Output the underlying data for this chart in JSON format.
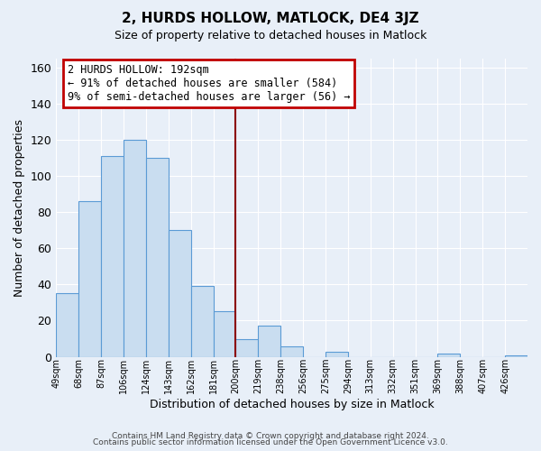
{
  "title": "2, HURDS HOLLOW, MATLOCK, DE4 3JZ",
  "subtitle": "Size of property relative to detached houses in Matlock",
  "xlabel": "Distribution of detached houses by size in Matlock",
  "ylabel": "Number of detached properties",
  "footer_line1": "Contains HM Land Registry data © Crown copyright and database right 2024.",
  "footer_line2": "Contains public sector information licensed under the Open Government Licence v3.0.",
  "bin_labels": [
    "49sqm",
    "68sqm",
    "87sqm",
    "106sqm",
    "124sqm",
    "143sqm",
    "162sqm",
    "181sqm",
    "200sqm",
    "219sqm",
    "238sqm",
    "256sqm",
    "275sqm",
    "294sqm",
    "313sqm",
    "332sqm",
    "351sqm",
    "369sqm",
    "388sqm",
    "407sqm",
    "426sqm"
  ],
  "bar_heights": [
    35,
    86,
    111,
    120,
    110,
    70,
    39,
    25,
    10,
    17,
    6,
    0,
    3,
    0,
    0,
    0,
    0,
    2,
    0,
    0,
    1
  ],
  "bar_color": "#c9ddf0",
  "bar_edge_color": "#5b9bd5",
  "vline_x_idx": 8,
  "vline_color": "#8b0000",
  "bin_edges_sqm": [
    49,
    68,
    87,
    106,
    124,
    143,
    162,
    181,
    200,
    219,
    238,
    256,
    275,
    294,
    313,
    332,
    351,
    369,
    388,
    407,
    426
  ],
  "annotation_title": "2 HURDS HOLLOW: 192sqm",
  "annotation_line1": "← 91% of detached houses are smaller (584)",
  "annotation_line2": "9% of semi-detached houses are larger (56) →",
  "annotation_box_color": "#ffffff",
  "annotation_box_edge_color": "#c00000",
  "ylim": [
    0,
    165
  ],
  "yticks": [
    0,
    20,
    40,
    60,
    80,
    100,
    120,
    140,
    160
  ],
  "bg_color": "#e8eff8",
  "grid_color": "#ffffff"
}
